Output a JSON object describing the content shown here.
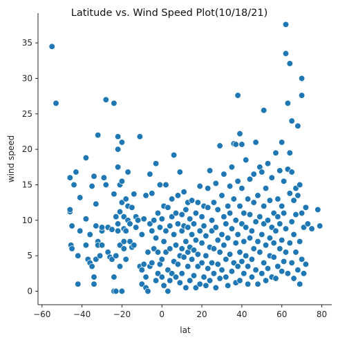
{
  "chart_data": {
    "type": "scatter",
    "title": "Latitude vs. Wind Speed Plot(10/18/21)",
    "xlabel": "lat",
    "ylabel": "wind speed",
    "xlim": [
      -62,
      85
    ],
    "ylim": [
      -1.9,
      39.2
    ],
    "xticks": [
      -60,
      -40,
      -20,
      0,
      20,
      40,
      60,
      80
    ],
    "yticks": [
      0,
      5,
      10,
      15,
      20,
      25,
      30,
      35
    ],
    "grid": false,
    "legend": "none",
    "marker_color": "#1f77b4",
    "marker_edge": "#ffffff",
    "points": [
      [
        -55,
        34.5
      ],
      [
        -53,
        26.5
      ],
      [
        -46,
        11.2
      ],
      [
        -46,
        11.5
      ],
      [
        -46,
        16
      ],
      [
        -45.5,
        6.5
      ],
      [
        -45,
        9.2
      ],
      [
        -45,
        6
      ],
      [
        -44,
        15
      ],
      [
        -43,
        16.8
      ],
      [
        -42,
        5
      ],
      [
        -42,
        1
      ],
      [
        -41,
        8.5
      ],
      [
        -41,
        13.2
      ],
      [
        -38,
        18.8
      ],
      [
        -38,
        6.5
      ],
      [
        -38,
        10.2
      ],
      [
        -37,
        4.5
      ],
      [
        -36,
        8
      ],
      [
        -36,
        4
      ],
      [
        -35,
        14.8
      ],
      [
        -35,
        3.5
      ],
      [
        -34,
        16.2
      ],
      [
        -34,
        1
      ],
      [
        -34,
        2
      ],
      [
        -33,
        12.3
      ],
      [
        -33,
        4.5
      ],
      [
        -33,
        9.2
      ],
      [
        -32,
        7
      ],
      [
        -32,
        6.5
      ],
      [
        -32,
        22
      ],
      [
        -31,
        5
      ],
      [
        -30,
        8.5
      ],
      [
        -30,
        9
      ],
      [
        -30,
        6.5
      ],
      [
        -29,
        16
      ],
      [
        -28,
        15
      ],
      [
        -28,
        27
      ],
      [
        -27,
        9
      ],
      [
        -27,
        5.5
      ],
      [
        -26,
        4.8
      ],
      [
        -25,
        4.5
      ],
      [
        -25,
        8.7
      ],
      [
        -24,
        26.5
      ],
      [
        -24,
        13.7
      ],
      [
        -24,
        2
      ],
      [
        -24,
        0
      ],
      [
        -23,
        0
      ],
      [
        -23,
        10.5
      ],
      [
        -23,
        5
      ],
      [
        -22,
        17.5
      ],
      [
        -22,
        9.5
      ],
      [
        -22,
        20
      ],
      [
        -22,
        21.8
      ],
      [
        -22,
        8.5
      ],
      [
        -21,
        11.2
      ],
      [
        -21,
        3.5
      ],
      [
        -21,
        6.5
      ],
      [
        -21,
        15
      ],
      [
        -20,
        15.5
      ],
      [
        -20,
        12.5
      ],
      [
        -20,
        0
      ],
      [
        -20,
        21
      ],
      [
        -19,
        8.8
      ],
      [
        -19,
        7
      ],
      [
        -19,
        10.5
      ],
      [
        -19,
        6
      ],
      [
        -18,
        13
      ],
      [
        -18,
        4.5
      ],
      [
        -18,
        8.5
      ],
      [
        -17,
        10
      ],
      [
        -17,
        12
      ],
      [
        -17,
        16.8
      ],
      [
        -16,
        7
      ],
      [
        -16,
        9.5
      ],
      [
        -15,
        6.2
      ],
      [
        -15,
        11.8
      ],
      [
        -14,
        13.7
      ],
      [
        -14,
        6.5
      ],
      [
        -13,
        10.5
      ],
      [
        -13,
        9
      ],
      [
        -12,
        10
      ],
      [
        -11,
        21.8
      ],
      [
        -11,
        3.5
      ],
      [
        -10,
        1
      ],
      [
        -10,
        8
      ],
      [
        -10,
        3
      ],
      [
        -9,
        3.8
      ],
      [
        -9,
        10.2
      ],
      [
        -8,
        0.5
      ],
      [
        -8,
        13.5
      ],
      [
        -8,
        2
      ],
      [
        -7,
        0
      ],
      [
        -7,
        5.5
      ],
      [
        -6,
        9.5
      ],
      [
        -6,
        3.5
      ],
      [
        -6,
        16.5
      ],
      [
        -5,
        4
      ],
      [
        -5,
        13.8
      ],
      [
        -5,
        8.5
      ],
      [
        -4,
        6
      ],
      [
        -4,
        10
      ],
      [
        -3,
        7.5
      ],
      [
        -3,
        1.5
      ],
      [
        -3,
        18
      ],
      [
        -2,
        2.5
      ],
      [
        -2,
        11
      ],
      [
        -2,
        5.5
      ],
      [
        -1,
        15
      ],
      [
        -1,
        3.8
      ],
      [
        -1,
        9
      ],
      [
        0,
        10.2
      ],
      [
        0,
        4.5
      ],
      [
        0,
        2
      ],
      [
        1,
        7
      ],
      [
        1,
        0.8
      ],
      [
        1,
        12
      ],
      [
        2,
        15
      ],
      [
        2,
        5.5
      ],
      [
        2,
        8.5
      ],
      [
        3,
        11.8
      ],
      [
        3,
        3
      ],
      [
        3,
        0
      ],
      [
        4,
        9.2
      ],
      [
        4,
        6
      ],
      [
        4,
        1.5
      ],
      [
        5,
        13
      ],
      [
        5,
        2.5
      ],
      [
        5,
        10.5
      ],
      [
        6,
        4.2
      ],
      [
        6,
        8
      ],
      [
        6,
        19.2
      ],
      [
        7,
        6.5
      ],
      [
        7,
        11
      ],
      [
        7,
        2
      ],
      [
        8,
        3.8
      ],
      [
        8,
        9.5
      ],
      [
        8,
        13.5
      ],
      [
        9,
        5
      ],
      [
        9,
        1.2
      ],
      [
        9,
        16.8
      ],
      [
        10,
        8.5
      ],
      [
        10,
        6
      ],
      [
        10,
        10.8
      ],
      [
        10,
        2.5
      ],
      [
        11,
        4.8
      ],
      [
        11,
        9.2
      ],
      [
        11,
        14
      ],
      [
        12,
        0.5
      ],
      [
        12,
        7
      ],
      [
        12,
        11.5
      ],
      [
        13,
        3.5
      ],
      [
        13,
        5.5
      ],
      [
        13,
        12.5
      ],
      [
        13,
        9
      ],
      [
        14,
        1.5
      ],
      [
        14,
        6.2
      ],
      [
        14,
        10.2
      ],
      [
        15,
        4.5
      ],
      [
        15,
        8
      ],
      [
        15,
        12.8
      ],
      [
        16,
        2.2
      ],
      [
        16,
        5.8
      ],
      [
        16,
        9.5
      ],
      [
        17,
        0.5
      ],
      [
        17,
        7.2
      ],
      [
        17,
        11
      ],
      [
        18,
        3.5
      ],
      [
        18,
        12.5
      ],
      [
        18,
        5.2
      ],
      [
        19,
        1
      ],
      [
        19,
        8.5
      ],
      [
        19,
        14.8
      ],
      [
        20,
        4
      ],
      [
        20,
        10.5
      ],
      [
        20,
        6.8
      ],
      [
        21,
        2
      ],
      [
        21,
        9.2
      ],
      [
        21,
        12
      ],
      [
        22,
        5
      ],
      [
        22,
        0.8
      ],
      [
        22,
        7.8
      ],
      [
        23,
        3.2
      ],
      [
        23,
        11.8
      ],
      [
        23,
        14.5
      ],
      [
        24,
        6.2
      ],
      [
        24,
        1.5
      ],
      [
        24,
        17
      ],
      [
        25,
        8.5
      ],
      [
        25,
        4
      ],
      [
        25,
        10
      ],
      [
        26,
        2.5
      ],
      [
        26,
        12.5
      ],
      [
        26,
        6
      ],
      [
        27,
        0.5
      ],
      [
        27,
        9
      ],
      [
        27,
        15.2
      ],
      [
        28,
        3.8
      ],
      [
        28,
        7.2
      ],
      [
        28,
        11.5
      ],
      [
        29,
        20.5
      ],
      [
        29,
        5.5
      ],
      [
        29,
        1.8
      ],
      [
        30,
        8
      ],
      [
        30,
        13.5
      ],
      [
        30,
        3
      ],
      [
        31,
        16.5
      ],
      [
        31,
        6.5
      ],
      [
        31,
        10.5
      ],
      [
        32,
        2
      ],
      [
        32,
        9.5
      ],
      [
        32,
        4.5
      ],
      [
        33,
        12
      ],
      [
        33,
        7.5
      ],
      [
        33,
        0.8
      ],
      [
        34,
        14.8
      ],
      [
        34,
        5.2
      ],
      [
        34,
        11
      ],
      [
        35,
        2.8
      ],
      [
        35,
        8.8
      ],
      [
        35,
        17.5
      ],
      [
        36,
        4
      ],
      [
        36,
        13
      ],
      [
        36,
        20.8
      ],
      [
        37,
        6.8
      ],
      [
        37,
        1.2
      ],
      [
        37,
        10
      ],
      [
        37,
        20.7
      ],
      [
        38,
        27.6
      ],
      [
        38,
        3.5
      ],
      [
        38,
        15.5
      ],
      [
        38,
        8
      ],
      [
        39,
        5.5
      ],
      [
        39,
        22.2
      ],
      [
        39,
        12
      ],
      [
        39,
        1.5
      ],
      [
        40,
        9.5
      ],
      [
        40,
        4.2
      ],
      [
        40,
        20.7
      ],
      [
        40,
        14.5
      ],
      [
        41,
        7
      ],
      [
        41,
        2.5
      ],
      [
        41,
        11
      ],
      [
        42,
        5
      ],
      [
        42,
        18.5
      ],
      [
        42,
        9
      ],
      [
        43,
        1
      ],
      [
        43,
        13
      ],
      [
        43,
        3.5
      ],
      [
        44,
        7.5
      ],
      [
        44,
        10.8
      ],
      [
        44,
        15.8
      ],
      [
        45,
        4.5
      ],
      [
        45,
        8.5
      ],
      [
        45,
        2
      ],
      [
        46,
        12.5
      ],
      [
        46,
        6
      ],
      [
        46,
        16.5
      ],
      [
        47,
        3
      ],
      [
        47,
        9.8
      ],
      [
        47,
        21
      ],
      [
        48,
        1
      ],
      [
        48,
        7
      ],
      [
        48,
        13.5
      ],
      [
        49,
        5.5
      ],
      [
        49,
        10.5
      ],
      [
        49,
        17.5
      ],
      [
        50,
        2.5
      ],
      [
        50,
        8
      ],
      [
        50,
        16.8
      ],
      [
        51,
        25.5
      ],
      [
        51,
        4
      ],
      [
        51,
        12
      ],
      [
        51,
        9.5
      ],
      [
        52,
        6.5
      ],
      [
        52,
        1.5
      ],
      [
        52,
        14.5
      ],
      [
        53,
        3.2
      ],
      [
        53,
        10
      ],
      [
        53,
        18
      ],
      [
        54,
        7.5
      ],
      [
        54,
        5
      ],
      [
        54,
        12.8
      ],
      [
        55,
        2
      ],
      [
        55,
        9
      ],
      [
        55,
        16
      ],
      [
        56,
        4.8
      ],
      [
        56,
        11
      ],
      [
        56,
        6.8
      ],
      [
        57,
        19.5
      ],
      [
        57,
        1.8
      ],
      [
        57,
        8.5
      ],
      [
        58,
        13
      ],
      [
        58,
        3.5
      ],
      [
        58,
        10.5
      ],
      [
        59,
        6
      ],
      [
        59,
        17
      ],
      [
        59,
        9.5
      ],
      [
        60,
        2.8
      ],
      [
        60,
        12
      ],
      [
        60,
        21
      ],
      [
        60,
        7.2
      ],
      [
        61,
        4.2
      ],
      [
        61,
        15.5
      ],
      [
        61,
        11
      ],
      [
        62,
        37.6
      ],
      [
        62,
        33.5
      ],
      [
        62,
        5.5
      ],
      [
        62,
        8.8
      ],
      [
        63,
        26.5
      ],
      [
        63,
        17.2
      ],
      [
        63,
        2.5
      ],
      [
        64,
        32.1
      ],
      [
        64,
        13.8
      ],
      [
        64,
        19.5
      ],
      [
        64,
        6.8
      ],
      [
        65,
        24
      ],
      [
        65,
        9.8
      ],
      [
        65,
        4
      ],
      [
        65,
        16.8
      ],
      [
        66,
        12.8
      ],
      [
        66,
        1.8
      ],
      [
        66,
        8
      ],
      [
        67,
        14.5
      ],
      [
        67,
        5.5
      ],
      [
        67,
        10.8
      ],
      [
        68,
        23.3
      ],
      [
        68,
        3
      ],
      [
        68,
        13.5
      ],
      [
        69,
        7
      ],
      [
        69,
        15
      ],
      [
        69,
        1
      ],
      [
        70,
        30
      ],
      [
        70,
        27.6
      ],
      [
        70,
        4.5
      ],
      [
        70,
        11
      ],
      [
        71,
        9
      ],
      [
        71,
        2.5
      ],
      [
        72,
        11.8
      ],
      [
        72,
        3.8
      ],
      [
        73,
        9.5
      ],
      [
        75,
        8.8
      ],
      [
        78,
        11.5
      ],
      [
        79,
        9.2
      ]
    ]
  }
}
